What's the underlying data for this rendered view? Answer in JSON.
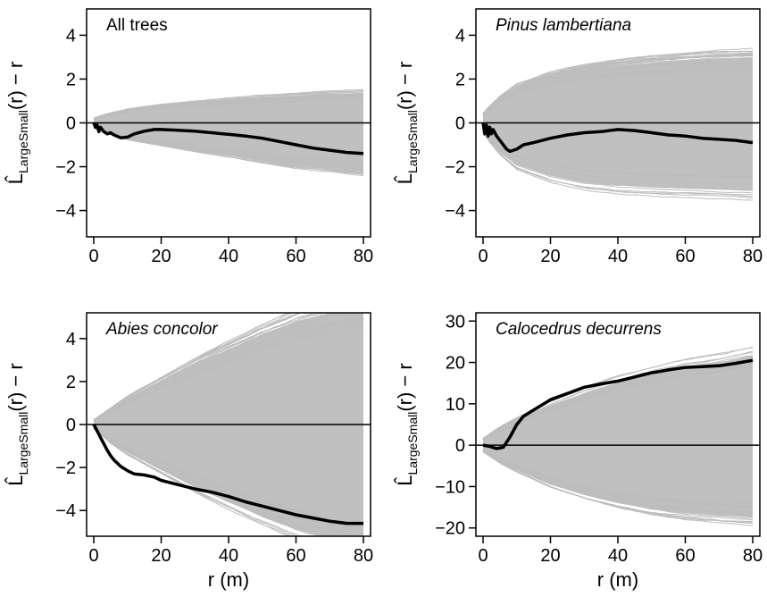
{
  "chart_data": [
    {
      "type": "line",
      "title": "All trees",
      "title_style": "normal",
      "xlabel": "",
      "ylabel": "L̂LargeSmall(r) − r",
      "xlim": [
        0,
        80
      ],
      "ylim": [
        -5.2,
        5.2
      ],
      "xticks": [
        0,
        20,
        40,
        60,
        80
      ],
      "yticks": [
        -4,
        -2,
        0,
        2,
        4
      ],
      "envelope": {
        "x": [
          0,
          2,
          5,
          10,
          20,
          30,
          40,
          50,
          60,
          70,
          80
        ],
        "upper": [
          0.2,
          0.3,
          0.42,
          0.58,
          0.78,
          0.92,
          1.05,
          1.15,
          1.22,
          1.3,
          1.35
        ],
        "lower": [
          -0.2,
          -0.35,
          -0.5,
          -0.7,
          -0.95,
          -1.2,
          -1.45,
          -1.7,
          -1.9,
          -2.05,
          -2.2
        ],
        "color": "#c0c0c0"
      },
      "series": [
        {
          "x": [
            0,
            0.5,
            1,
            1.5,
            2,
            2.5,
            3,
            4,
            5,
            6,
            8,
            10,
            12,
            15,
            18,
            20,
            25,
            30,
            35,
            40,
            45,
            50,
            55,
            60,
            65,
            70,
            75,
            80
          ],
          "y": [
            0,
            -0.2,
            -0.1,
            -0.4,
            -0.2,
            -0.3,
            -0.4,
            -0.5,
            -0.45,
            -0.55,
            -0.68,
            -0.65,
            -0.5,
            -0.38,
            -0.3,
            -0.3,
            -0.34,
            -0.38,
            -0.45,
            -0.52,
            -0.6,
            -0.7,
            -0.85,
            -1.0,
            -1.15,
            -1.25,
            -1.35,
            -1.4
          ],
          "color": "#000000"
        }
      ],
      "hline": 0
    },
    {
      "type": "line",
      "title": "Pinus lambertiana",
      "title_style": "italic",
      "xlabel": "",
      "ylabel": "L̂LargeSmall(r) − r",
      "xlim": [
        0,
        80
      ],
      "ylim": [
        -5.2,
        5.2
      ],
      "xticks": [
        0,
        20,
        40,
        60,
        80
      ],
      "yticks": [
        -4,
        -2,
        0,
        2,
        4
      ],
      "envelope": {
        "x": [
          0,
          2,
          5,
          10,
          20,
          30,
          40,
          50,
          60,
          70,
          80
        ],
        "upper": [
          0.4,
          0.7,
          1.1,
          1.6,
          2.1,
          2.4,
          2.6,
          2.75,
          2.85,
          2.95,
          3.0
        ],
        "lower": [
          -0.4,
          -0.8,
          -1.3,
          -1.9,
          -2.4,
          -2.7,
          -2.85,
          -2.95,
          -3.0,
          -3.05,
          -3.1
        ],
        "color": "#c0c0c0"
      },
      "series": [
        {
          "x": [
            0,
            0.5,
            1,
            1.5,
            2,
            2.5,
            3,
            4,
            5,
            6,
            7,
            8,
            10,
            12,
            15,
            20,
            25,
            30,
            35,
            40,
            45,
            50,
            55,
            60,
            65,
            70,
            75,
            80
          ],
          "y": [
            0,
            -0.5,
            -0.1,
            -0.6,
            -0.2,
            -0.5,
            -0.3,
            -0.6,
            -0.8,
            -1.0,
            -1.2,
            -1.3,
            -1.2,
            -1.0,
            -0.9,
            -0.7,
            -0.55,
            -0.45,
            -0.4,
            -0.3,
            -0.35,
            -0.45,
            -0.55,
            -0.6,
            -0.7,
            -0.75,
            -0.8,
            -0.9
          ],
          "color": "#000000"
        }
      ],
      "hline": 0
    },
    {
      "type": "line",
      "title": "Abies concolor",
      "title_style": "italic",
      "xlabel": "r (m)",
      "ylabel": "L̂LargeSmall(r) − r",
      "xlim": [
        0,
        80
      ],
      "ylim": [
        -5.2,
        5.2
      ],
      "xticks": [
        0,
        20,
        40,
        60,
        80
      ],
      "yticks": [
        -4,
        -2,
        0,
        2,
        4
      ],
      "envelope": {
        "x": [
          0,
          2,
          5,
          10,
          20,
          30,
          40,
          50,
          60,
          70,
          80
        ],
        "upper": [
          0.2,
          0.4,
          0.7,
          1.2,
          2.0,
          2.8,
          3.5,
          4.2,
          4.8,
          5.2,
          5.4
        ],
        "lower": [
          -0.2,
          -0.4,
          -0.8,
          -1.3,
          -2.1,
          -2.9,
          -3.6,
          -4.3,
          -4.9,
          -5.3,
          -5.5
        ],
        "color": "#c0c0c0"
      },
      "series": [
        {
          "x": [
            0,
            1,
            2,
            3,
            4,
            5,
            6,
            8,
            10,
            12,
            15,
            18,
            20,
            25,
            30,
            35,
            40,
            45,
            50,
            55,
            60,
            65,
            70,
            75,
            80
          ],
          "y": [
            0,
            -0.3,
            -0.6,
            -0.9,
            -1.2,
            -1.45,
            -1.65,
            -1.95,
            -2.15,
            -2.3,
            -2.35,
            -2.45,
            -2.6,
            -2.8,
            -3.0,
            -3.15,
            -3.35,
            -3.6,
            -3.8,
            -4.0,
            -4.2,
            -4.35,
            -4.5,
            -4.6,
            -4.6
          ],
          "color": "#000000"
        }
      ],
      "hline": 0
    },
    {
      "type": "line",
      "title": "Calocedrus decurrens",
      "title_style": "italic",
      "xlabel": "r (m)",
      "ylabel": "L̂LargeSmall(r) − r",
      "xlim": [
        0,
        80
      ],
      "ylim": [
        -22,
        32
      ],
      "xticks": [
        0,
        20,
        40,
        60,
        80
      ],
      "yticks": [
        -20,
        -10,
        0,
        10,
        20,
        30
      ],
      "envelope": {
        "x": [
          0,
          2,
          5,
          10,
          20,
          30,
          40,
          50,
          60,
          70,
          80
        ],
        "upper": [
          1.5,
          2.5,
          4.0,
          6.0,
          9.5,
          12.5,
          15.0,
          17.0,
          18.8,
          20.0,
          21.5
        ],
        "lower": [
          -1.5,
          -2.5,
          -4.0,
          -6.0,
          -9.5,
          -12.0,
          -14.0,
          -15.5,
          -16.5,
          -17.0,
          -17.5
        ],
        "color": "#c0c0c0"
      },
      "series": [
        {
          "x": [
            0,
            2,
            4,
            6,
            8,
            10,
            12,
            15,
            18,
            20,
            25,
            30,
            35,
            40,
            45,
            50,
            55,
            60,
            65,
            70,
            75,
            80
          ],
          "y": [
            0,
            -0.3,
            -0.8,
            -0.5,
            2.0,
            5.0,
            7.0,
            8.5,
            10.0,
            11.0,
            12.5,
            14.0,
            14.8,
            15.5,
            16.5,
            17.5,
            18.2,
            18.8,
            19.0,
            19.2,
            19.8,
            20.5
          ],
          "color": "#000000"
        }
      ],
      "hline": 0
    }
  ]
}
